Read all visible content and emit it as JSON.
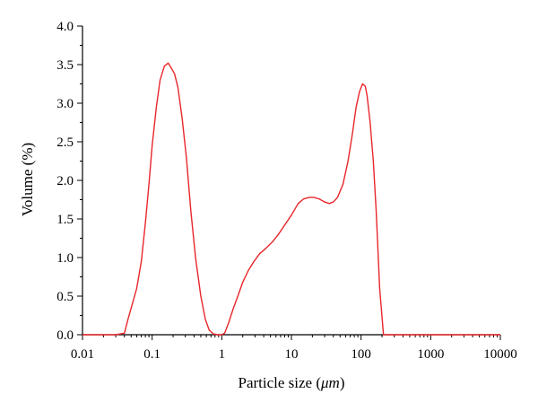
{
  "chart_data": {
    "type": "line",
    "xlabel_prefix": "Particle size (",
    "xlabel_unit": "μm",
    "xlabel_suffix": ")",
    "ylabel": "Volume (%)",
    "x_scale": "log",
    "xlim": [
      0.01,
      10000
    ],
    "ylim": [
      0.0,
      4.0
    ],
    "x_ticks": [
      0.01,
      0.1,
      1,
      10,
      100,
      1000,
      10000
    ],
    "x_tick_labels": [
      "0.01",
      "0.1",
      "1",
      "10",
      "100",
      "1000",
      "10000"
    ],
    "y_ticks": [
      0.0,
      0.5,
      1.0,
      1.5,
      2.0,
      2.5,
      3.0,
      3.5,
      4.0
    ],
    "y_tick_labels": [
      "0.0",
      "0.5",
      "1.0",
      "1.5",
      "2.0",
      "2.5",
      "3.0",
      "3.5",
      "4.0"
    ],
    "grid": false,
    "colors": {
      "series": "#e8262b",
      "axis": "#000000"
    },
    "series": [
      {
        "x": [
          0.01,
          0.03,
          0.04,
          0.045,
          0.052,
          0.06,
          0.07,
          0.08,
          0.09,
          0.1,
          0.115,
          0.13,
          0.15,
          0.17,
          0.19,
          0.21,
          0.235,
          0.27,
          0.31,
          0.36,
          0.42,
          0.5,
          0.58,
          0.66,
          0.76,
          0.87,
          1.0,
          1.1,
          1.25,
          1.45,
          1.7,
          2.0,
          2.4,
          2.9,
          3.5,
          4.3,
          5.3,
          6.5,
          8.0,
          10,
          12.5,
          15,
          18,
          21,
          25,
          30,
          35,
          40,
          46,
          55,
          65,
          75,
          85,
          95,
          105,
          115,
          122,
          135,
          150,
          165,
          185,
          210,
          240,
          300,
          1000,
          10000
        ],
        "values": [
          0.0,
          0.0,
          0.02,
          0.2,
          0.4,
          0.6,
          0.95,
          1.45,
          1.95,
          2.45,
          2.95,
          3.3,
          3.48,
          3.52,
          3.45,
          3.38,
          3.2,
          2.8,
          2.3,
          1.6,
          1.0,
          0.5,
          0.2,
          0.06,
          0.01,
          0.0,
          0.0,
          0.02,
          0.15,
          0.33,
          0.5,
          0.68,
          0.83,
          0.95,
          1.05,
          1.12,
          1.2,
          1.3,
          1.42,
          1.55,
          1.7,
          1.76,
          1.78,
          1.78,
          1.76,
          1.72,
          1.7,
          1.72,
          1.78,
          1.95,
          2.25,
          2.6,
          2.95,
          3.15,
          3.25,
          3.22,
          3.1,
          2.75,
          2.25,
          1.6,
          0.6,
          0.0,
          0.0,
          0.0,
          0.0,
          0.0
        ]
      }
    ]
  }
}
